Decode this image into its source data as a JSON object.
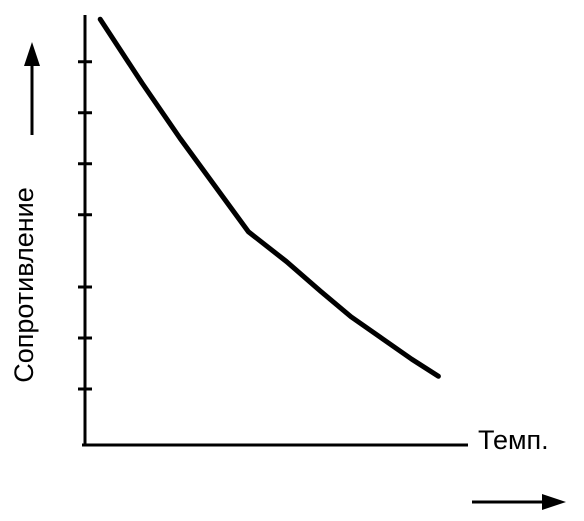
{
  "chart_data": {
    "type": "line",
    "xlabel": "Темп.",
    "ylabel": "Сопротивление",
    "x": [
      0.4,
      1.5,
      2.5,
      3.4,
      4.3,
      5.3,
      6.2,
      7.0,
      7.8,
      8.6,
      9.3
    ],
    "series": [
      {
        "color": "#000000",
        "values": [
          9.9,
          8.4,
          7.1,
          6.0,
          4.9,
          4.2,
          3.5,
          2.9,
          2.4,
          1.9,
          1.5
        ]
      }
    ],
    "xlim": [
      0,
      10
    ],
    "ylim": [
      0,
      10
    ],
    "yticks": [
      1.2,
      2.4,
      3.6,
      5.3,
      6.5,
      7.7,
      8.9
    ]
  }
}
